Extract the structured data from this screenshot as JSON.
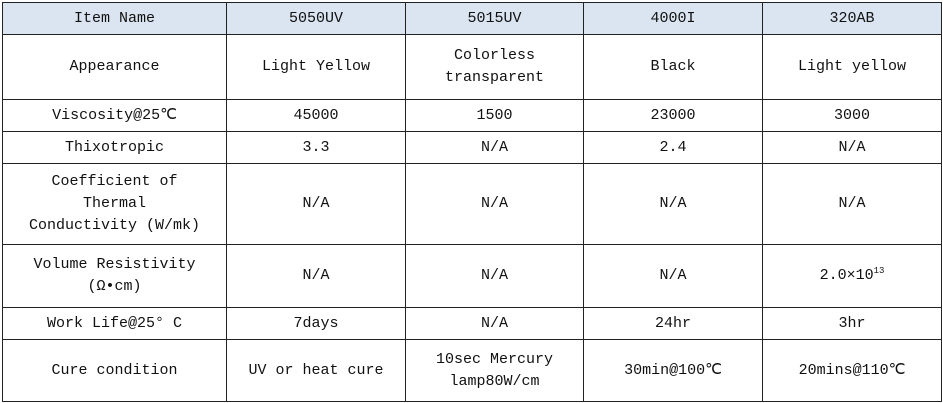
{
  "table": {
    "header": [
      "Item Name",
      "5050UV",
      "5015UV",
      "4000I",
      "320AB"
    ],
    "rows": [
      [
        "Appearance",
        "Light Yellow",
        "Colorless\ntransparent",
        "Black",
        "Light yellow"
      ],
      [
        "Viscosity@25℃",
        "45000",
        "1500",
        "23000",
        "3000"
      ],
      [
        "Thixotropic",
        "3.3",
        "N/A",
        "2.4",
        "N/A"
      ],
      [
        "Coefficient of\nThermal\nConductivity (W/mk)",
        "N/A",
        "N/A",
        "N/A",
        "N/A"
      ],
      [
        "Volume Resistivity\n(Ω•cm)",
        "N/A",
        "N/A",
        "N/A",
        {
          "base": "2.0×10",
          "exponent": "13"
        }
      ],
      [
        "Work Life@25° C",
        "7days",
        "N/A",
        "24hr",
        "3hr"
      ],
      [
        "Cure condition",
        "UV or heat cure",
        "10sec Mercury\nlamp80W/cm",
        "30min@100℃",
        "20mins@110℃"
      ]
    ]
  }
}
